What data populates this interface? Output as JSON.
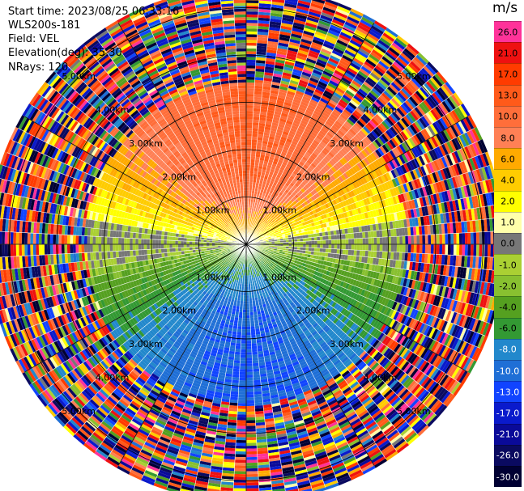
{
  "header": {
    "start_time": "Start time: 2023/08/25 06:33:16",
    "instrument": "WLS200s-181",
    "field": "Field: VEL",
    "elevation": "Elevation(deg): 35.30",
    "nrays": "NRays: 120"
  },
  "colorbar": {
    "unit": "m/s",
    "levels": [
      {
        "label": "26.0",
        "color": "#ff3399",
        "text": "#000000"
      },
      {
        "label": "21.0",
        "color": "#ee1111",
        "text": "#000000"
      },
      {
        "label": "17.0",
        "color": "#ff3b00",
        "text": "#000000"
      },
      {
        "label": "13.0",
        "color": "#ff5a1a",
        "text": "#000000"
      },
      {
        "label": "10.0",
        "color": "#ff6e3a",
        "text": "#000000"
      },
      {
        "label": "8.0",
        "color": "#ff8055",
        "text": "#000000"
      },
      {
        "label": "6.0",
        "color": "#ffaa00",
        "text": "#000000"
      },
      {
        "label": "4.0",
        "color": "#ffcc00",
        "text": "#000000"
      },
      {
        "label": "2.0",
        "color": "#ffff00",
        "text": "#000000"
      },
      {
        "label": "1.0",
        "color": "#ffffaa",
        "text": "#000000"
      },
      {
        "label": "0.0",
        "color": "#777777",
        "text": "#000000"
      },
      {
        "label": "-1.0",
        "color": "#aad033",
        "text": "#000000"
      },
      {
        "label": "-2.0",
        "color": "#88c030",
        "text": "#000000"
      },
      {
        "label": "-4.0",
        "color": "#55a020",
        "text": "#000000"
      },
      {
        "label": "-6.0",
        "color": "#339933",
        "text": "#000000"
      },
      {
        "label": "-8.0",
        "color": "#2288cc",
        "text": "#ffffff"
      },
      {
        "label": "-10.0",
        "color": "#1f6fd6",
        "text": "#ffffff"
      },
      {
        "label": "-13.0",
        "color": "#1144ff",
        "text": "#ffffff"
      },
      {
        "label": "-17.0",
        "color": "#0a1acc",
        "text": "#ffffff"
      },
      {
        "label": "-21.0",
        "color": "#0a0a99",
        "text": "#ffffff"
      },
      {
        "label": "-26.0",
        "color": "#0a0a60",
        "text": "#ffffff"
      },
      {
        "label": "-30.0",
        "color": "#000033",
        "text": "#ffffff"
      }
    ]
  },
  "chart_data": {
    "type": "heatmap",
    "projection": "polar PPI scan",
    "field": "VEL",
    "units": "m/s",
    "n_rays": 120,
    "elevation_deg": 35.3,
    "range_rings_km": [
      1.0,
      2.0,
      3.0,
      4.0,
      5.0
    ],
    "ring_labels": [
      "1.00km",
      "2.00km",
      "3.00km",
      "4.00km",
      "5.00km"
    ],
    "max_range_km": 5.4,
    "valid_range_km": 3.3,
    "wind_pattern": {
      "description": "positive (toward-red) velocities in the north sector, negative (blue) in the south, near-zero band along east-west axis",
      "peak_positive_ms": 13.0,
      "peak_negative_ms": -10.0
    },
    "noise_beyond_km": 3.4
  }
}
